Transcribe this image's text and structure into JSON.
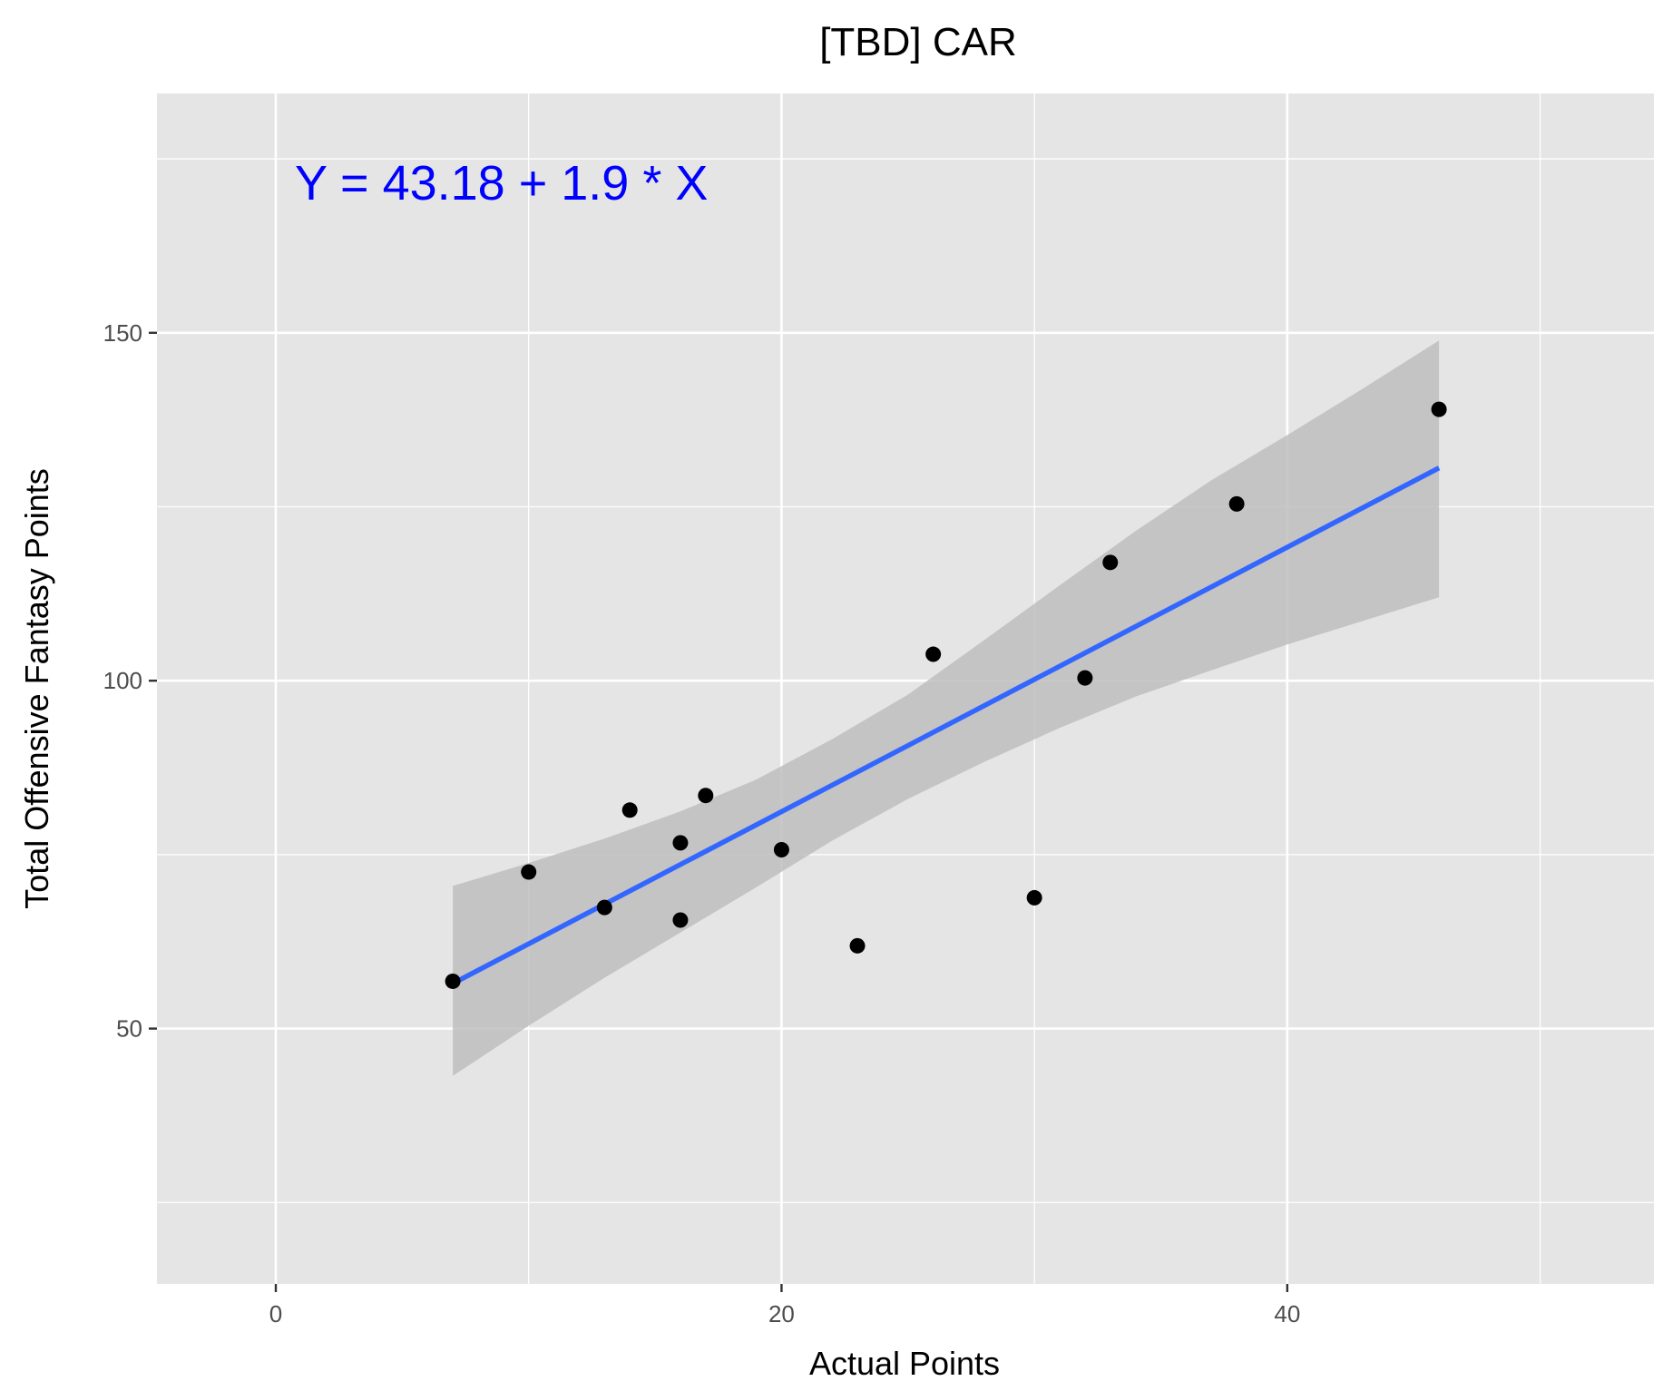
{
  "chart_data": {
    "type": "scatter",
    "title": "[TBD] CAR",
    "xlabel": "Actual Points",
    "ylabel": "Total Offensive Fantasy Points",
    "xlim": [
      -4.7,
      54.5
    ],
    "ylim": [
      13.3,
      184.4
    ],
    "x_ticks": [
      0,
      20,
      40
    ],
    "x_tick_labels": [
      "0",
      "20",
      "40"
    ],
    "y_ticks": [
      50,
      100,
      150
    ],
    "y_tick_labels": [
      "50",
      "100",
      "150"
    ],
    "grid": true,
    "annotation": {
      "text": "Y = 43.18 + 1.9 * X",
      "color": "#0000ff"
    },
    "points": [
      {
        "x": 7,
        "y": 56.8
      },
      {
        "x": 10,
        "y": 72.5
      },
      {
        "x": 13,
        "y": 67.4
      },
      {
        "x": 14,
        "y": 81.4
      },
      {
        "x": 16,
        "y": 76.7
      },
      {
        "x": 16,
        "y": 65.6
      },
      {
        "x": 17,
        "y": 83.5
      },
      {
        "x": 20,
        "y": 75.7
      },
      {
        "x": 23,
        "y": 61.9
      },
      {
        "x": 26,
        "y": 103.8
      },
      {
        "x": 30,
        "y": 68.8
      },
      {
        "x": 32,
        "y": 100.4
      },
      {
        "x": 33,
        "y": 117.0
      },
      {
        "x": 38,
        "y": 125.4
      },
      {
        "x": 46,
        "y": 139.0
      }
    ],
    "fit_line": {
      "intercept": 43.18,
      "slope": 1.9,
      "x_range": [
        7,
        46
      ],
      "color": "#3366ff"
    },
    "confidence_band": {
      "x": [
        7,
        10,
        13,
        16,
        19,
        22,
        25,
        28,
        31,
        34,
        37,
        40,
        43,
        46
      ],
      "lower": [
        43.2,
        50.4,
        57.3,
        63.8,
        70.3,
        77.0,
        83.0,
        88.3,
        93.2,
        97.7,
        101.5,
        105.2,
        108.6,
        112.0
      ],
      "upper": [
        70.5,
        73.8,
        77.3,
        81.2,
        85.8,
        91.6,
        98.0,
        105.8,
        113.7,
        121.5,
        128.8,
        135.3,
        142.0,
        148.9
      ]
    },
    "colors": {
      "panel": "#e5e5e5",
      "grid": "#ffffff",
      "point": "#000000",
      "band": "#bebebe"
    }
  }
}
